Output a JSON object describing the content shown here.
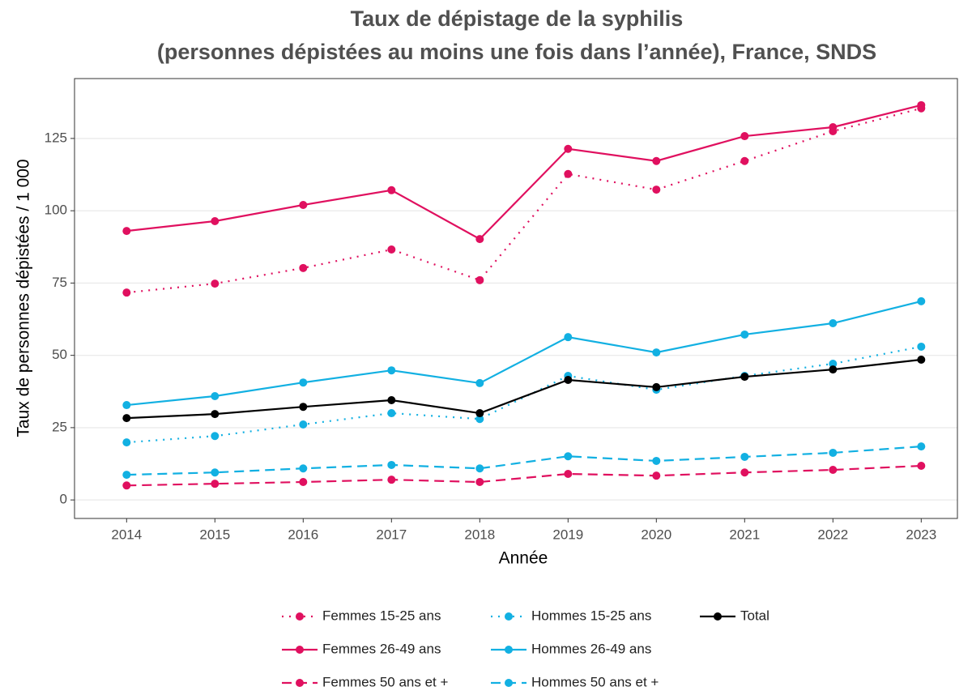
{
  "chart_data": {
    "type": "line",
    "title": [
      "Taux de dépistage de la syphilis",
      "(personnes dépistées au moins une fois dans l’année), France, SNDS"
    ],
    "x_label": "Année",
    "y_label": "Taux de personnes dépistées / 1 000",
    "x": [
      2014,
      2015,
      2016,
      2017,
      2018,
      2019,
      2020,
      2021,
      2022,
      2023
    ],
    "xlim": [
      2013.41,
      2023.41
    ],
    "xticks": [
      2014,
      2015,
      2016,
      2017,
      2018,
      2019,
      2020,
      2021,
      2022,
      2023
    ],
    "ylim": [
      -6.4,
      145.7
    ],
    "yticks": [
      0,
      25,
      50,
      75,
      100,
      125
    ],
    "grid": true,
    "legend": "bottom",
    "series": [
      {
        "name": "Femmes 15-25 ans",
        "color": "#e0105f",
        "dash": "dotted",
        "values": [
          71.7,
          74.8,
          80.2,
          86.6,
          76.0,
          112.7,
          107.3,
          117.2,
          127.5,
          135.4
        ]
      },
      {
        "name": "Femmes 26-49 ans",
        "color": "#e0105f",
        "dash": "solid",
        "values": [
          93.0,
          96.4,
          102.0,
          107.1,
          90.2,
          121.4,
          117.2,
          125.8,
          128.9,
          136.5
        ]
      },
      {
        "name": "Femmes 50 ans et +",
        "color": "#e0105f",
        "dash": "dashed",
        "values": [
          5.0,
          5.6,
          6.2,
          7.0,
          6.2,
          9.0,
          8.4,
          9.5,
          10.4,
          11.8
        ]
      },
      {
        "name": "Hommes 15-25 ans",
        "color": "#12b0e2",
        "dash": "dotted",
        "values": [
          19.9,
          22.1,
          26.1,
          30.0,
          28.0,
          42.9,
          38.1,
          42.9,
          47.1,
          53.0
        ]
      },
      {
        "name": "Hommes 26-49 ans",
        "color": "#12b0e2",
        "dash": "solid",
        "values": [
          32.8,
          35.9,
          40.6,
          44.8,
          40.4,
          56.3,
          51.0,
          57.2,
          61.1,
          68.7
        ]
      },
      {
        "name": "Hommes 50 ans et +",
        "color": "#12b0e2",
        "dash": "dashed",
        "values": [
          8.7,
          9.5,
          10.9,
          12.1,
          10.9,
          15.1,
          13.5,
          14.9,
          16.3,
          18.5
        ]
      },
      {
        "name": "Total",
        "color": "#000000",
        "dash": "solid",
        "values": [
          28.3,
          29.7,
          32.2,
          34.5,
          30.0,
          41.5,
          39.0,
          42.6,
          45.1,
          48.5
        ]
      }
    ]
  }
}
